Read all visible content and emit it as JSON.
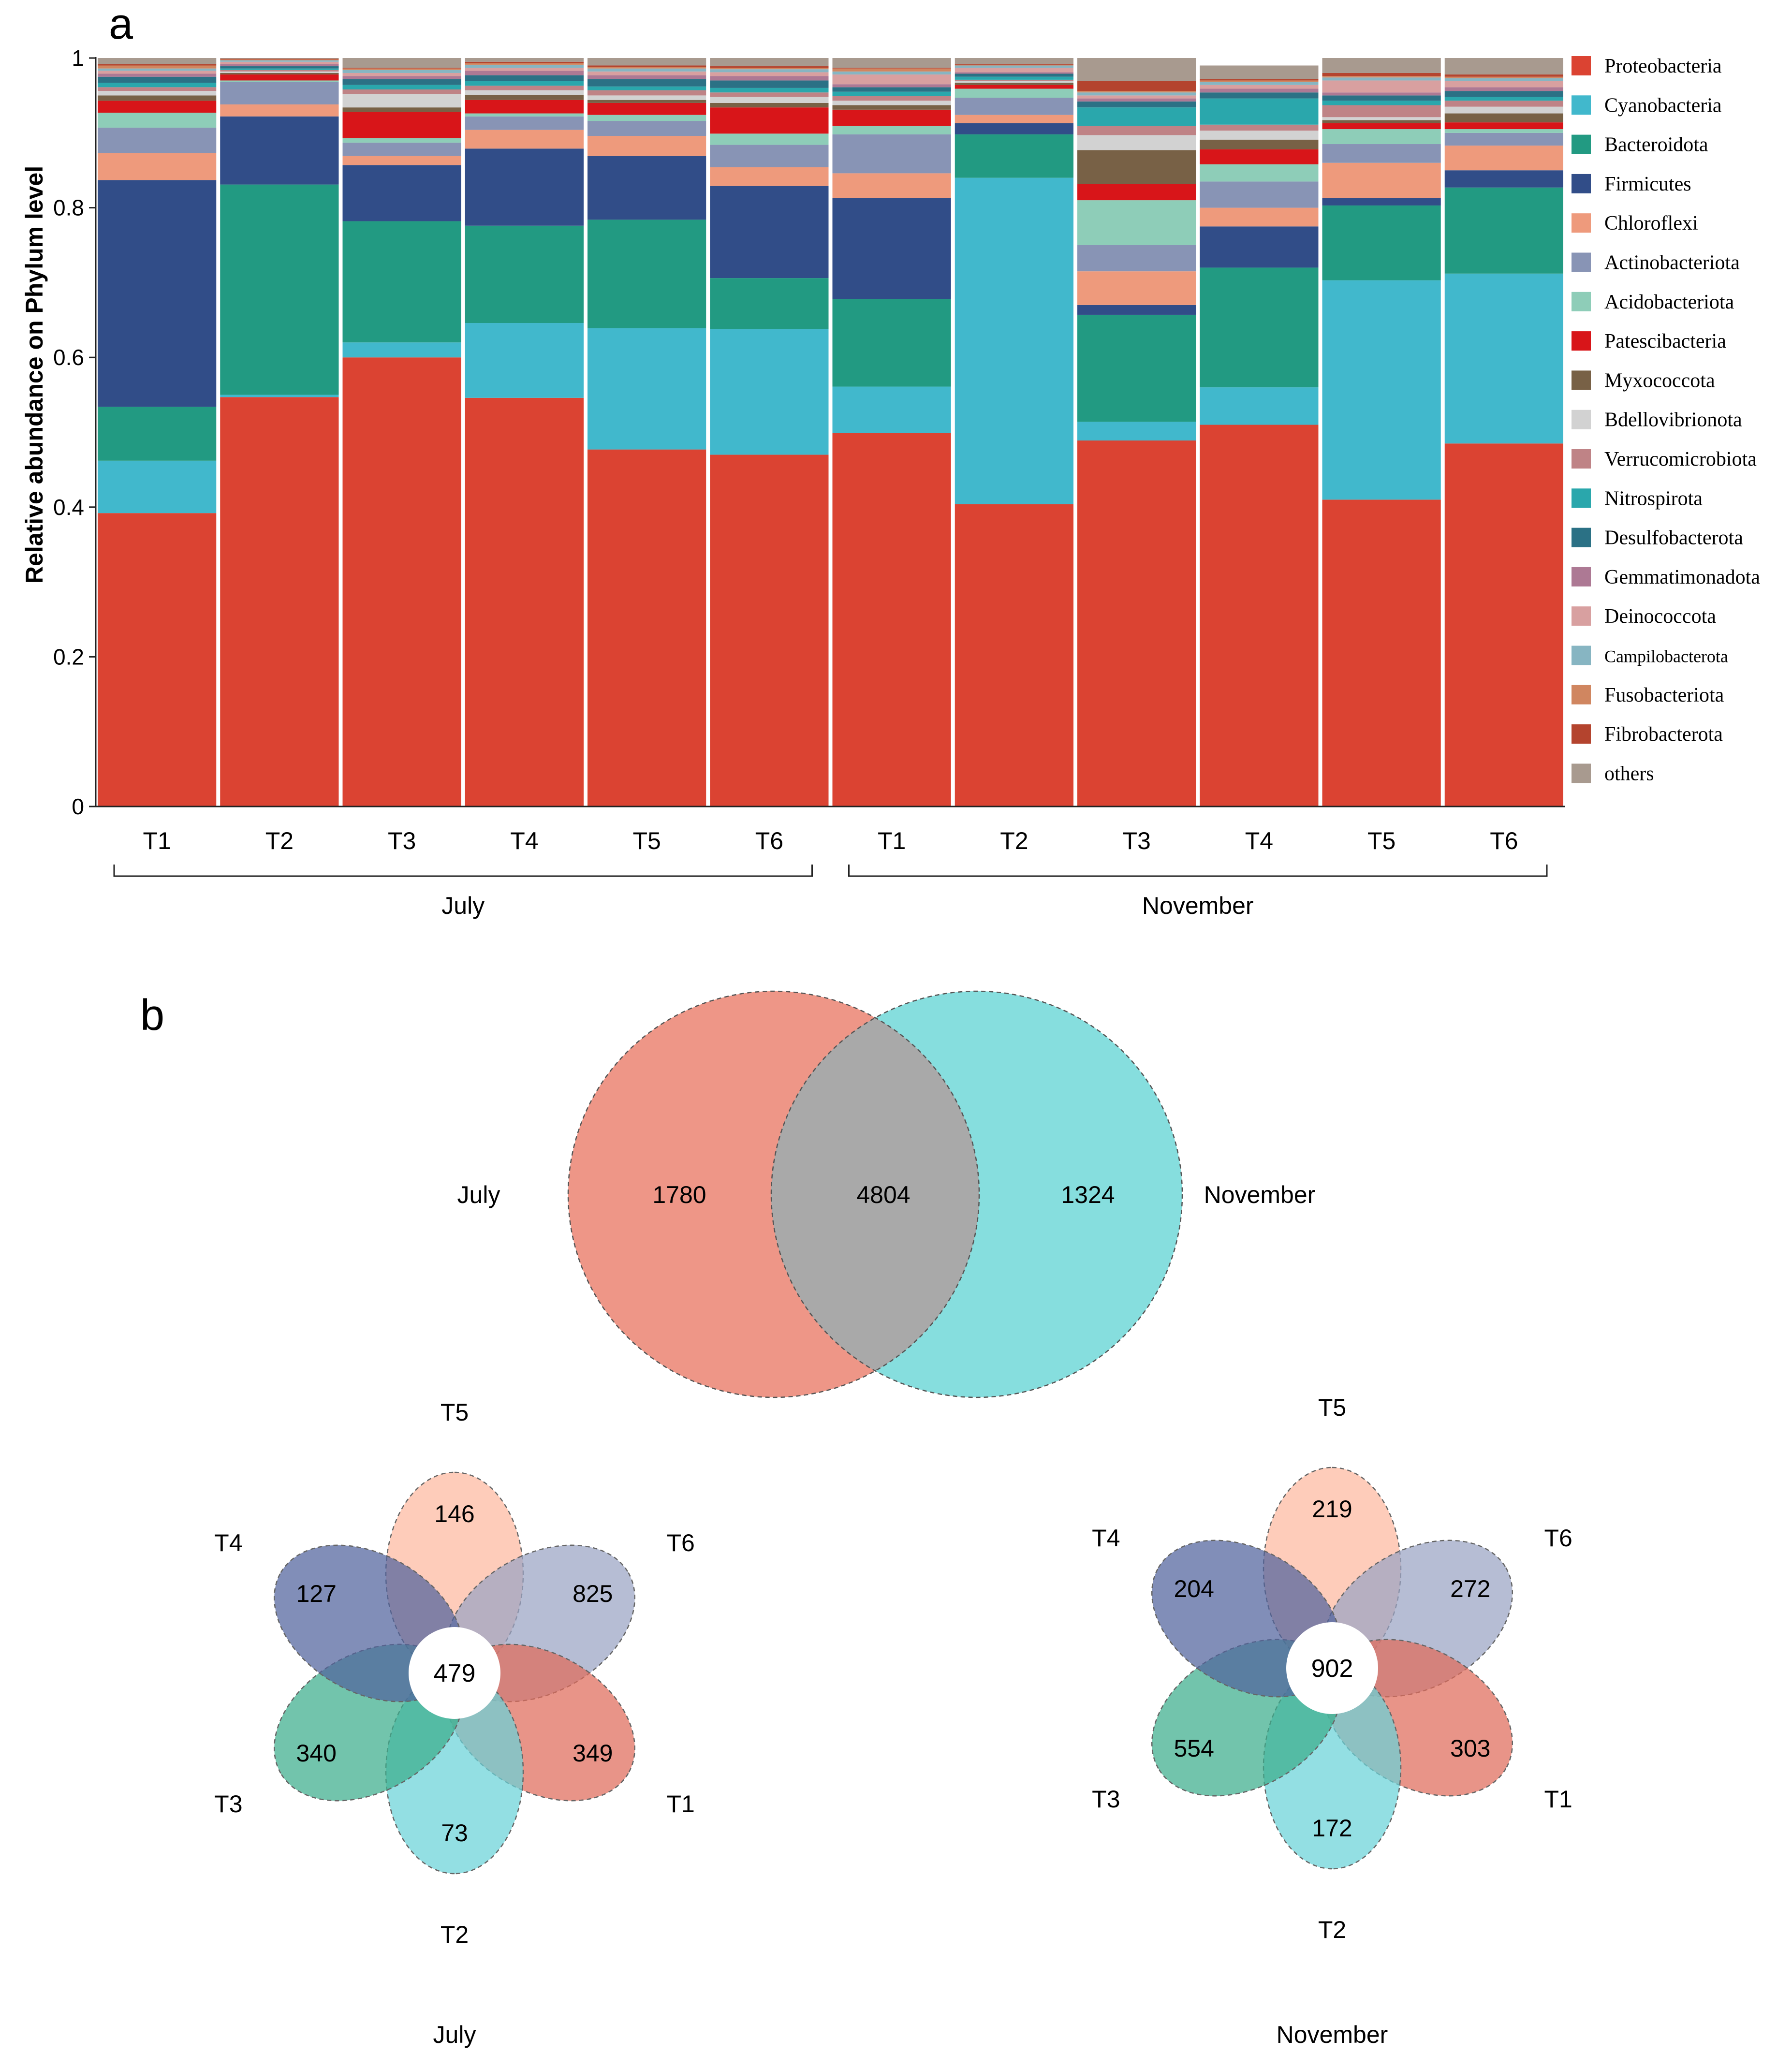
{
  "panel_labels": {
    "a": "a",
    "b": "b"
  },
  "chart_data": [
    {
      "type": "bar",
      "subtype": "stacked-100",
      "title": "",
      "ylabel": "Relative abundance on Phylum level",
      "xlabel": "",
      "ylim": [
        0,
        1
      ],
      "yticks": [
        {
          "value": 0,
          "label": "0"
        },
        {
          "value": 0.2,
          "label": "0.2"
        },
        {
          "value": 0.4,
          "label": "0.4"
        },
        {
          "value": 0.6,
          "label": "0.6"
        },
        {
          "value": 0.8,
          "label": "0.8"
        },
        {
          "value": 1,
          "label": "1"
        }
      ],
      "categories": [
        "T1",
        "T2",
        "T3",
        "T4",
        "T5",
        "T6",
        "T1",
        "T2",
        "T3",
        "T4",
        "T5",
        "T6"
      ],
      "groups": [
        {
          "name": "July",
          "from": 0,
          "to": 5
        },
        {
          "name": "November",
          "from": 6,
          "to": 11
        }
      ],
      "legend_position": "right",
      "series": [
        {
          "name": "Proteobacteria",
          "color": "#DB4332",
          "values": [
            0.392,
            0.547,
            0.6,
            0.546,
            0.477,
            0.47,
            0.499,
            0.404,
            0.489,
            0.51,
            0.41,
            0.485
          ]
        },
        {
          "name": "Cyanobacteria",
          "color": "#41B8CC",
          "values": [
            0.07,
            0.003,
            0.02,
            0.1,
            0.162,
            0.168,
            0.062,
            0.436,
            0.025,
            0.05,
            0.293,
            0.227
          ]
        },
        {
          "name": "Bacteroidota",
          "color": "#229A82",
          "values": [
            0.072,
            0.281,
            0.162,
            0.13,
            0.145,
            0.068,
            0.117,
            0.058,
            0.143,
            0.16,
            0.1,
            0.115
          ]
        },
        {
          "name": "Firmicutes",
          "color": "#314D88",
          "values": [
            0.303,
            0.091,
            0.075,
            0.103,
            0.085,
            0.123,
            0.135,
            0.015,
            0.013,
            0.055,
            0.01,
            0.023
          ]
        },
        {
          "name": "Chloroflexi",
          "color": "#EE9A7C",
          "values": [
            0.036,
            0.016,
            0.012,
            0.025,
            0.027,
            0.025,
            0.033,
            0.011,
            0.045,
            0.025,
            0.047,
            0.033
          ]
        },
        {
          "name": "Actinobacteriota",
          "color": "#8894B5",
          "values": [
            0.034,
            0.03,
            0.018,
            0.018,
            0.02,
            0.03,
            0.052,
            0.023,
            0.035,
            0.035,
            0.025,
            0.017
          ]
        },
        {
          "name": "Acidobacteriota",
          "color": "#8ECDB8",
          "values": [
            0.02,
            0.002,
            0.006,
            0.004,
            0.008,
            0.015,
            0.011,
            0.012,
            0.06,
            0.023,
            0.02,
            0.005
          ]
        },
        {
          "name": "Patescibacteria",
          "color": "#D81519",
          "values": [
            0.016,
            0.008,
            0.035,
            0.018,
            0.016,
            0.035,
            0.022,
            0.005,
            0.022,
            0.02,
            0.008,
            0.009
          ]
        },
        {
          "name": "Myxococcota",
          "color": "#786146",
          "values": [
            0.007,
            0.002,
            0.006,
            0.007,
            0.004,
            0.006,
            0.006,
            0.003,
            0.045,
            0.013,
            0.004,
            0.012
          ]
        },
        {
          "name": "Bdellovibrionota",
          "color": "#D2D2D2",
          "values": [
            0.006,
            0.002,
            0.018,
            0.006,
            0.006,
            0.008,
            0.006,
            0.002,
            0.02,
            0.012,
            0.004,
            0.009
          ]
        },
        {
          "name": "Verrucomicrobiota",
          "color": "#BF8386",
          "values": [
            0.005,
            0.002,
            0.006,
            0.006,
            0.007,
            0.006,
            0.006,
            0.002,
            0.012,
            0.008,
            0.016,
            0.008
          ]
        },
        {
          "name": "Nitrospirota",
          "color": "#2AA7AC",
          "values": [
            0.006,
            0.002,
            0.006,
            0.006,
            0.005,
            0.006,
            0.006,
            0.004,
            0.025,
            0.035,
            0.006,
            0.005
          ]
        },
        {
          "name": "Desulfobacterota",
          "color": "#2B7185",
          "values": [
            0.008,
            0.003,
            0.008,
            0.008,
            0.01,
            0.01,
            0.006,
            0.004,
            0.008,
            0.008,
            0.007,
            0.008
          ]
        },
        {
          "name": "Gemmatimonadota",
          "color": "#AD7994",
          "values": [
            0.004,
            0.003,
            0.004,
            0.006,
            0.005,
            0.006,
            0.004,
            0.002,
            0.004,
            0.005,
            0.004,
            0.005
          ]
        },
        {
          "name": "Deinococcota",
          "color": "#D8A0A0",
          "values": [
            0.004,
            0.003,
            0.004,
            0.004,
            0.005,
            0.005,
            0.013,
            0.006,
            0.004,
            0.005,
            0.016,
            0.008
          ]
        },
        {
          "name": "Campilobacterota",
          "color": "#87B5C2",
          "values": [
            0.003,
            0.002,
            0.004,
            0.004,
            0.004,
            0.004,
            0.004,
            0.003,
            0.004,
            0.004,
            0.004,
            0.004
          ]
        },
        {
          "name": "Fusobacteriota",
          "color": "#D08660",
          "values": [
            0.004,
            0.001,
            0.002,
            0.002,
            0.002,
            0.002,
            0.004,
            0.001,
            0.002,
            0.002,
            0.002,
            0.002
          ]
        },
        {
          "name": "Fibrobacterota",
          "color": "#B4442E",
          "values": [
            0.002,
            0.001,
            0.001,
            0.002,
            0.002,
            0.002,
            0.001,
            0.001,
            0.013,
            0.002,
            0.004,
            0.003
          ]
        },
        {
          "name": "others",
          "color": "#A89A8F",
          "values": [
            0.008,
            0.001,
            0.013,
            0.005,
            0.01,
            0.011,
            0.013,
            0.008,
            0.031,
            0.018,
            0.02,
            0.022
          ]
        }
      ]
    },
    {
      "type": "venn",
      "sets": [
        {
          "label": "July",
          "color": "#E8735F",
          "unique": 1780
        },
        {
          "label": "November",
          "color": "#5ED3D3",
          "unique": 1324
        }
      ],
      "intersection": 4804,
      "overlap_color": "#A9A9A9"
    },
    {
      "type": "flower",
      "caption": "July",
      "core": 479,
      "petals": [
        {
          "label": "T5",
          "value": 146,
          "color": "#FDB8A0"
        },
        {
          "label": "T6",
          "value": 825,
          "color": "#9AA4C4"
        },
        {
          "label": "T1",
          "value": 349,
          "color": "#DF6B5A"
        },
        {
          "label": "T2",
          "value": 73,
          "color": "#6AD2D8"
        },
        {
          "label": "T3",
          "value": 340,
          "color": "#3CAD8C"
        },
        {
          "label": "T4",
          "value": 127,
          "color": "#50629C"
        }
      ]
    },
    {
      "type": "flower",
      "caption": "November",
      "core": 902,
      "petals": [
        {
          "label": "T5",
          "value": 219,
          "color": "#FDB8A0"
        },
        {
          "label": "T6",
          "value": 272,
          "color": "#9AA4C4"
        },
        {
          "label": "T1",
          "value": 303,
          "color": "#DF6B5A"
        },
        {
          "label": "T2",
          "value": 172,
          "color": "#6AD2D8"
        },
        {
          "label": "T3",
          "value": 554,
          "color": "#3CAD8C"
        },
        {
          "label": "T4",
          "value": 204,
          "color": "#50629C"
        }
      ]
    }
  ]
}
